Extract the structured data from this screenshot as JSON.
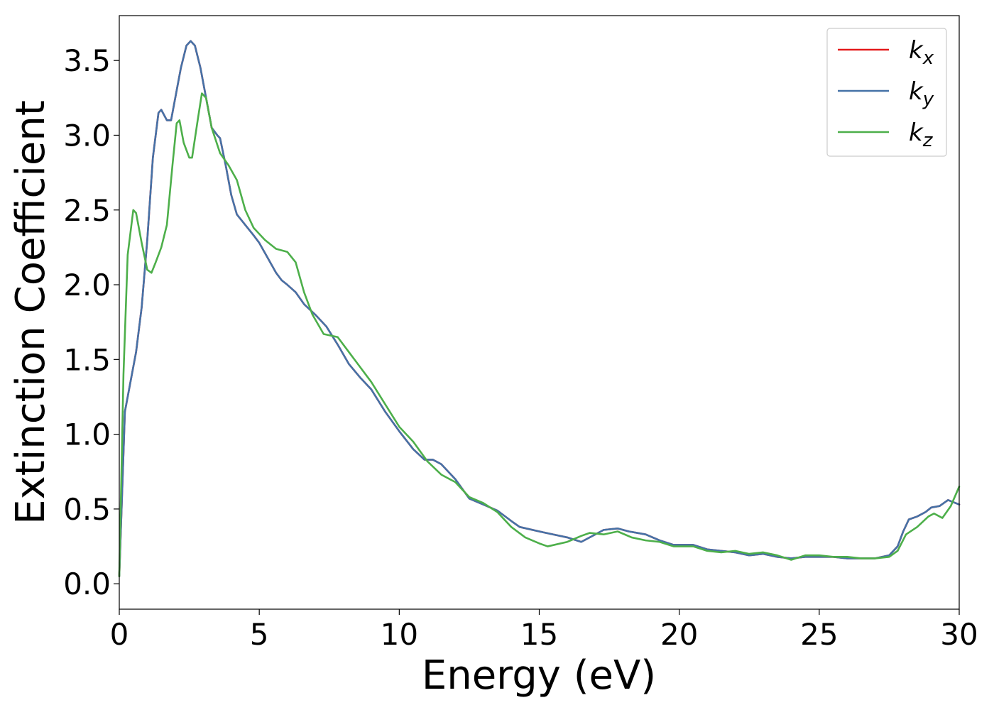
{
  "chart_data": {
    "type": "line",
    "title": "",
    "xlabel": "Energy (eV)",
    "ylabel": "Extinction Coefficient",
    "xlim": [
      0,
      30
    ],
    "ylim": [
      -0.17,
      3.8
    ],
    "xticks": [
      0,
      5,
      10,
      15,
      20,
      25,
      30
    ],
    "xtick_labels": [
      "0",
      "5",
      "10",
      "15",
      "20",
      "25",
      "30"
    ],
    "yticks": [
      0.0,
      0.5,
      1.0,
      1.5,
      2.0,
      2.5,
      3.0,
      3.5
    ],
    "ytick_labels": [
      "0.0",
      "0.5",
      "1.0",
      "1.5",
      "2.0",
      "2.5",
      "3.0",
      "3.5"
    ],
    "grid": false,
    "legend_position": "top-right",
    "series": [
      {
        "name": "k",
        "subscript": "x",
        "color": "#e41a1c",
        "points": [
          [
            0,
            0.05
          ],
          [
            0.1,
            0.6
          ],
          [
            0.2,
            1.15
          ],
          [
            0.4,
            1.35
          ],
          [
            0.6,
            1.55
          ],
          [
            0.8,
            1.85
          ],
          [
            1.0,
            2.3
          ],
          [
            1.2,
            2.85
          ],
          [
            1.4,
            3.15
          ],
          [
            1.5,
            3.17
          ],
          [
            1.7,
            3.1
          ],
          [
            1.85,
            3.1
          ],
          [
            2.0,
            3.25
          ],
          [
            2.2,
            3.45
          ],
          [
            2.4,
            3.6
          ],
          [
            2.55,
            3.63
          ],
          [
            2.7,
            3.6
          ],
          [
            2.9,
            3.45
          ],
          [
            3.1,
            3.25
          ],
          [
            3.3,
            3.05
          ],
          [
            3.5,
            3.0
          ],
          [
            3.6,
            2.98
          ],
          [
            3.8,
            2.8
          ],
          [
            4.0,
            2.6
          ],
          [
            4.2,
            2.47
          ],
          [
            4.5,
            2.4
          ],
          [
            4.8,
            2.33
          ],
          [
            5.0,
            2.28
          ],
          [
            5.3,
            2.18
          ],
          [
            5.6,
            2.08
          ],
          [
            5.8,
            2.03
          ],
          [
            6.0,
            2.0
          ],
          [
            6.3,
            1.95
          ],
          [
            6.6,
            1.87
          ],
          [
            7.0,
            1.8
          ],
          [
            7.4,
            1.72
          ],
          [
            7.8,
            1.6
          ],
          [
            8.2,
            1.47
          ],
          [
            8.6,
            1.38
          ],
          [
            9.0,
            1.3
          ],
          [
            9.5,
            1.15
          ],
          [
            10.0,
            1.02
          ],
          [
            10.5,
            0.9
          ],
          [
            10.9,
            0.83
          ],
          [
            11.2,
            0.83
          ],
          [
            11.5,
            0.8
          ],
          [
            12.0,
            0.7
          ],
          [
            12.5,
            0.57
          ],
          [
            13.0,
            0.53
          ],
          [
            13.5,
            0.49
          ],
          [
            14.0,
            0.42
          ],
          [
            14.3,
            0.38
          ],
          [
            15.0,
            0.35
          ],
          [
            15.5,
            0.33
          ],
          [
            16.0,
            0.31
          ],
          [
            16.5,
            0.28
          ],
          [
            17.0,
            0.33
          ],
          [
            17.3,
            0.36
          ],
          [
            17.8,
            0.37
          ],
          [
            18.2,
            0.35
          ],
          [
            18.8,
            0.33
          ],
          [
            19.3,
            0.29
          ],
          [
            19.8,
            0.26
          ],
          [
            20.5,
            0.26
          ],
          [
            21.0,
            0.23
          ],
          [
            21.5,
            0.22
          ],
          [
            22.0,
            0.21
          ],
          [
            22.5,
            0.19
          ],
          [
            23.0,
            0.2
          ],
          [
            23.5,
            0.18
          ],
          [
            24.0,
            0.17
          ],
          [
            24.5,
            0.18
          ],
          [
            25.0,
            0.18
          ],
          [
            25.5,
            0.18
          ],
          [
            26.0,
            0.17
          ],
          [
            26.5,
            0.17
          ],
          [
            27.0,
            0.17
          ],
          [
            27.5,
            0.19
          ],
          [
            27.8,
            0.25
          ],
          [
            28.0,
            0.35
          ],
          [
            28.2,
            0.43
          ],
          [
            28.5,
            0.45
          ],
          [
            28.8,
            0.48
          ],
          [
            29.0,
            0.51
          ],
          [
            29.3,
            0.52
          ],
          [
            29.6,
            0.56
          ],
          [
            30.0,
            0.53
          ]
        ]
      },
      {
        "name": "k",
        "subscript": "y",
        "color": "#4572a7",
        "points": [
          [
            0,
            0.05
          ],
          [
            0.1,
            0.6
          ],
          [
            0.2,
            1.15
          ],
          [
            0.4,
            1.35
          ],
          [
            0.6,
            1.55
          ],
          [
            0.8,
            1.85
          ],
          [
            1.0,
            2.3
          ],
          [
            1.2,
            2.85
          ],
          [
            1.4,
            3.15
          ],
          [
            1.5,
            3.17
          ],
          [
            1.7,
            3.1
          ],
          [
            1.85,
            3.1
          ],
          [
            2.0,
            3.25
          ],
          [
            2.2,
            3.45
          ],
          [
            2.4,
            3.6
          ],
          [
            2.55,
            3.63
          ],
          [
            2.7,
            3.6
          ],
          [
            2.9,
            3.45
          ],
          [
            3.1,
            3.25
          ],
          [
            3.3,
            3.05
          ],
          [
            3.5,
            3.0
          ],
          [
            3.6,
            2.98
          ],
          [
            3.8,
            2.8
          ],
          [
            4.0,
            2.6
          ],
          [
            4.2,
            2.47
          ],
          [
            4.5,
            2.4
          ],
          [
            4.8,
            2.33
          ],
          [
            5.0,
            2.28
          ],
          [
            5.3,
            2.18
          ],
          [
            5.6,
            2.08
          ],
          [
            5.8,
            2.03
          ],
          [
            6.0,
            2.0
          ],
          [
            6.3,
            1.95
          ],
          [
            6.6,
            1.87
          ],
          [
            7.0,
            1.8
          ],
          [
            7.4,
            1.72
          ],
          [
            7.8,
            1.6
          ],
          [
            8.2,
            1.47
          ],
          [
            8.6,
            1.38
          ],
          [
            9.0,
            1.3
          ],
          [
            9.5,
            1.15
          ],
          [
            10.0,
            1.02
          ],
          [
            10.5,
            0.9
          ],
          [
            10.9,
            0.83
          ],
          [
            11.2,
            0.83
          ],
          [
            11.5,
            0.8
          ],
          [
            12.0,
            0.7
          ],
          [
            12.5,
            0.57
          ],
          [
            13.0,
            0.53
          ],
          [
            13.5,
            0.49
          ],
          [
            14.0,
            0.42
          ],
          [
            14.3,
            0.38
          ],
          [
            15.0,
            0.35
          ],
          [
            15.5,
            0.33
          ],
          [
            16.0,
            0.31
          ],
          [
            16.5,
            0.28
          ],
          [
            17.0,
            0.33
          ],
          [
            17.3,
            0.36
          ],
          [
            17.8,
            0.37
          ],
          [
            18.2,
            0.35
          ],
          [
            18.8,
            0.33
          ],
          [
            19.3,
            0.29
          ],
          [
            19.8,
            0.26
          ],
          [
            20.5,
            0.26
          ],
          [
            21.0,
            0.23
          ],
          [
            21.5,
            0.22
          ],
          [
            22.0,
            0.21
          ],
          [
            22.5,
            0.19
          ],
          [
            23.0,
            0.2
          ],
          [
            23.5,
            0.18
          ],
          [
            24.0,
            0.17
          ],
          [
            24.5,
            0.18
          ],
          [
            25.0,
            0.18
          ],
          [
            25.5,
            0.18
          ],
          [
            26.0,
            0.17
          ],
          [
            26.5,
            0.17
          ],
          [
            27.0,
            0.17
          ],
          [
            27.5,
            0.19
          ],
          [
            27.8,
            0.25
          ],
          [
            28.0,
            0.35
          ],
          [
            28.2,
            0.43
          ],
          [
            28.5,
            0.45
          ],
          [
            28.8,
            0.48
          ],
          [
            29.0,
            0.51
          ],
          [
            29.3,
            0.52
          ],
          [
            29.6,
            0.56
          ],
          [
            30.0,
            0.53
          ]
        ]
      },
      {
        "name": "k",
        "subscript": "z",
        "color": "#4daf4a",
        "points": [
          [
            0,
            0.05
          ],
          [
            0.15,
            1.4
          ],
          [
            0.3,
            2.2
          ],
          [
            0.5,
            2.5
          ],
          [
            0.6,
            2.48
          ],
          [
            0.8,
            2.28
          ],
          [
            1.0,
            2.1
          ],
          [
            1.15,
            2.08
          ],
          [
            1.3,
            2.15
          ],
          [
            1.5,
            2.25
          ],
          [
            1.7,
            2.4
          ],
          [
            1.9,
            2.8
          ],
          [
            2.05,
            3.08
          ],
          [
            2.15,
            3.1
          ],
          [
            2.3,
            2.95
          ],
          [
            2.5,
            2.85
          ],
          [
            2.6,
            2.85
          ],
          [
            2.8,
            3.1
          ],
          [
            2.95,
            3.28
          ],
          [
            3.1,
            3.25
          ],
          [
            3.3,
            3.05
          ],
          [
            3.6,
            2.88
          ],
          [
            3.9,
            2.8
          ],
          [
            4.2,
            2.7
          ],
          [
            4.5,
            2.5
          ],
          [
            4.8,
            2.38
          ],
          [
            5.2,
            2.3
          ],
          [
            5.6,
            2.24
          ],
          [
            6.0,
            2.22
          ],
          [
            6.3,
            2.15
          ],
          [
            6.6,
            1.95
          ],
          [
            6.9,
            1.8
          ],
          [
            7.3,
            1.67
          ],
          [
            7.8,
            1.65
          ],
          [
            8.2,
            1.55
          ],
          [
            8.6,
            1.45
          ],
          [
            9.0,
            1.35
          ],
          [
            9.5,
            1.2
          ],
          [
            10.0,
            1.05
          ],
          [
            10.5,
            0.95
          ],
          [
            11.0,
            0.82
          ],
          [
            11.5,
            0.73
          ],
          [
            12.0,
            0.68
          ],
          [
            12.5,
            0.58
          ],
          [
            13.0,
            0.54
          ],
          [
            13.5,
            0.48
          ],
          [
            14.0,
            0.38
          ],
          [
            14.5,
            0.31
          ],
          [
            15.0,
            0.27
          ],
          [
            15.3,
            0.25
          ],
          [
            16.0,
            0.28
          ],
          [
            16.5,
            0.32
          ],
          [
            16.8,
            0.34
          ],
          [
            17.3,
            0.33
          ],
          [
            17.8,
            0.35
          ],
          [
            18.3,
            0.31
          ],
          [
            18.8,
            0.29
          ],
          [
            19.3,
            0.28
          ],
          [
            19.8,
            0.25
          ],
          [
            20.5,
            0.25
          ],
          [
            21.0,
            0.22
          ],
          [
            21.5,
            0.21
          ],
          [
            22.0,
            0.22
          ],
          [
            22.5,
            0.2
          ],
          [
            23.0,
            0.21
          ],
          [
            23.5,
            0.19
          ],
          [
            24.0,
            0.16
          ],
          [
            24.5,
            0.19
          ],
          [
            25.0,
            0.19
          ],
          [
            25.5,
            0.18
          ],
          [
            26.0,
            0.18
          ],
          [
            26.5,
            0.17
          ],
          [
            27.0,
            0.17
          ],
          [
            27.5,
            0.18
          ],
          [
            27.8,
            0.22
          ],
          [
            28.1,
            0.33
          ],
          [
            28.5,
            0.38
          ],
          [
            28.9,
            0.45
          ],
          [
            29.1,
            0.47
          ],
          [
            29.4,
            0.44
          ],
          [
            29.7,
            0.52
          ],
          [
            30.0,
            0.65
          ]
        ]
      }
    ]
  }
}
